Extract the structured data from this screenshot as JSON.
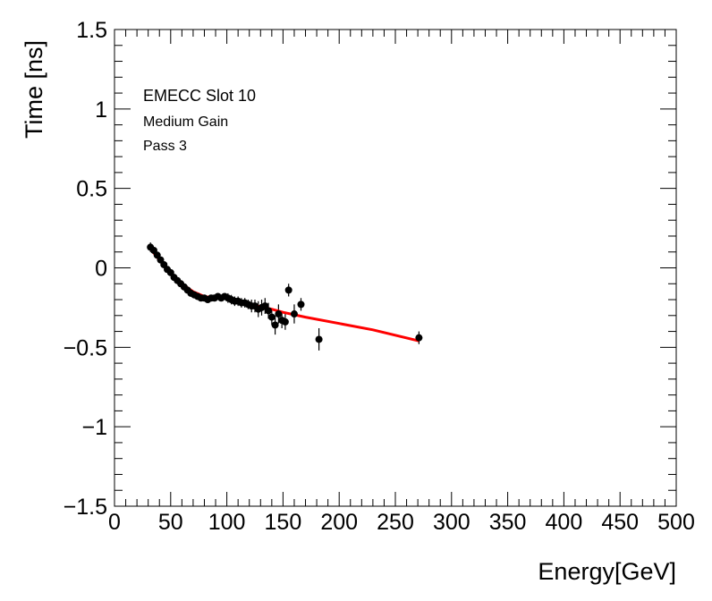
{
  "chart_data": {
    "type": "scatter",
    "title": "",
    "xlabel": "Energy[GeV]",
    "ylabel": "Time [ns]",
    "xlim": [
      0,
      500
    ],
    "ylim": [
      -1.5,
      1.5
    ],
    "x_major_ticks": [
      0,
      50,
      100,
      150,
      200,
      250,
      300,
      350,
      400,
      450,
      500
    ],
    "x_tick_labels": [
      "0",
      "50",
      "100",
      "150",
      "200",
      "250",
      "300",
      "350",
      "400",
      "450",
      "500"
    ],
    "y_major_ticks": [
      -1.5,
      -1,
      -0.5,
      0,
      0.5,
      1,
      1.5
    ],
    "y_tick_labels": [
      "−1.5",
      "−1",
      "−0.5",
      "0",
      "0.5",
      "1",
      "1.5"
    ],
    "annotations": [
      "EMECC Slot 10",
      "Medium Gain",
      "Pass 3"
    ],
    "series": [
      {
        "name": "data",
        "kind": "points_with_error",
        "color": "#000000",
        "x": [
          32,
          35,
          38,
          41,
          44,
          47,
          50,
          53,
          56,
          59,
          62,
          65,
          68,
          71,
          74,
          77,
          80,
          83,
          86,
          89,
          92,
          95,
          98,
          101,
          104,
          107,
          110,
          113,
          116,
          119,
          122,
          125,
          128,
          131,
          134,
          137,
          140,
          143,
          146,
          149,
          152,
          155,
          160,
          166,
          182,
          271
        ],
        "y": [
          0.13,
          0.11,
          0.08,
          0.05,
          0.02,
          -0.01,
          -0.03,
          -0.06,
          -0.08,
          -0.1,
          -0.12,
          -0.14,
          -0.16,
          -0.17,
          -0.18,
          -0.19,
          -0.19,
          -0.2,
          -0.19,
          -0.19,
          -0.18,
          -0.19,
          -0.18,
          -0.19,
          -0.2,
          -0.21,
          -0.21,
          -0.22,
          -0.22,
          -0.23,
          -0.24,
          -0.24,
          -0.26,
          -0.25,
          -0.24,
          -0.27,
          -0.31,
          -0.36,
          -0.29,
          -0.33,
          -0.34,
          -0.14,
          -0.29,
          -0.23,
          -0.45,
          -0.44
        ],
        "err": [
          0.03,
          0.02,
          0.02,
          0.02,
          0.02,
          0.02,
          0.02,
          0.02,
          0.02,
          0.02,
          0.02,
          0.02,
          0.02,
          0.02,
          0.02,
          0.02,
          0.02,
          0.02,
          0.02,
          0.02,
          0.02,
          0.02,
          0.02,
          0.03,
          0.03,
          0.03,
          0.03,
          0.03,
          0.03,
          0.03,
          0.04,
          0.04,
          0.05,
          0.05,
          0.05,
          0.05,
          0.05,
          0.06,
          0.06,
          0.05,
          0.05,
          0.04,
          0.06,
          0.04,
          0.07,
          0.04
        ]
      },
      {
        "name": "fit",
        "kind": "line",
        "color": "#ff0000",
        "x": [
          32,
          40,
          50,
          60,
          70,
          80,
          90,
          100,
          110,
          120,
          130,
          140,
          150,
          170,
          200,
          230,
          271
        ],
        "y": [
          0.12,
          0.05,
          -0.03,
          -0.1,
          -0.15,
          -0.18,
          -0.19,
          -0.19,
          -0.21,
          -0.23,
          -0.245,
          -0.26,
          -0.28,
          -0.31,
          -0.35,
          -0.39,
          -0.46
        ]
      }
    ]
  }
}
